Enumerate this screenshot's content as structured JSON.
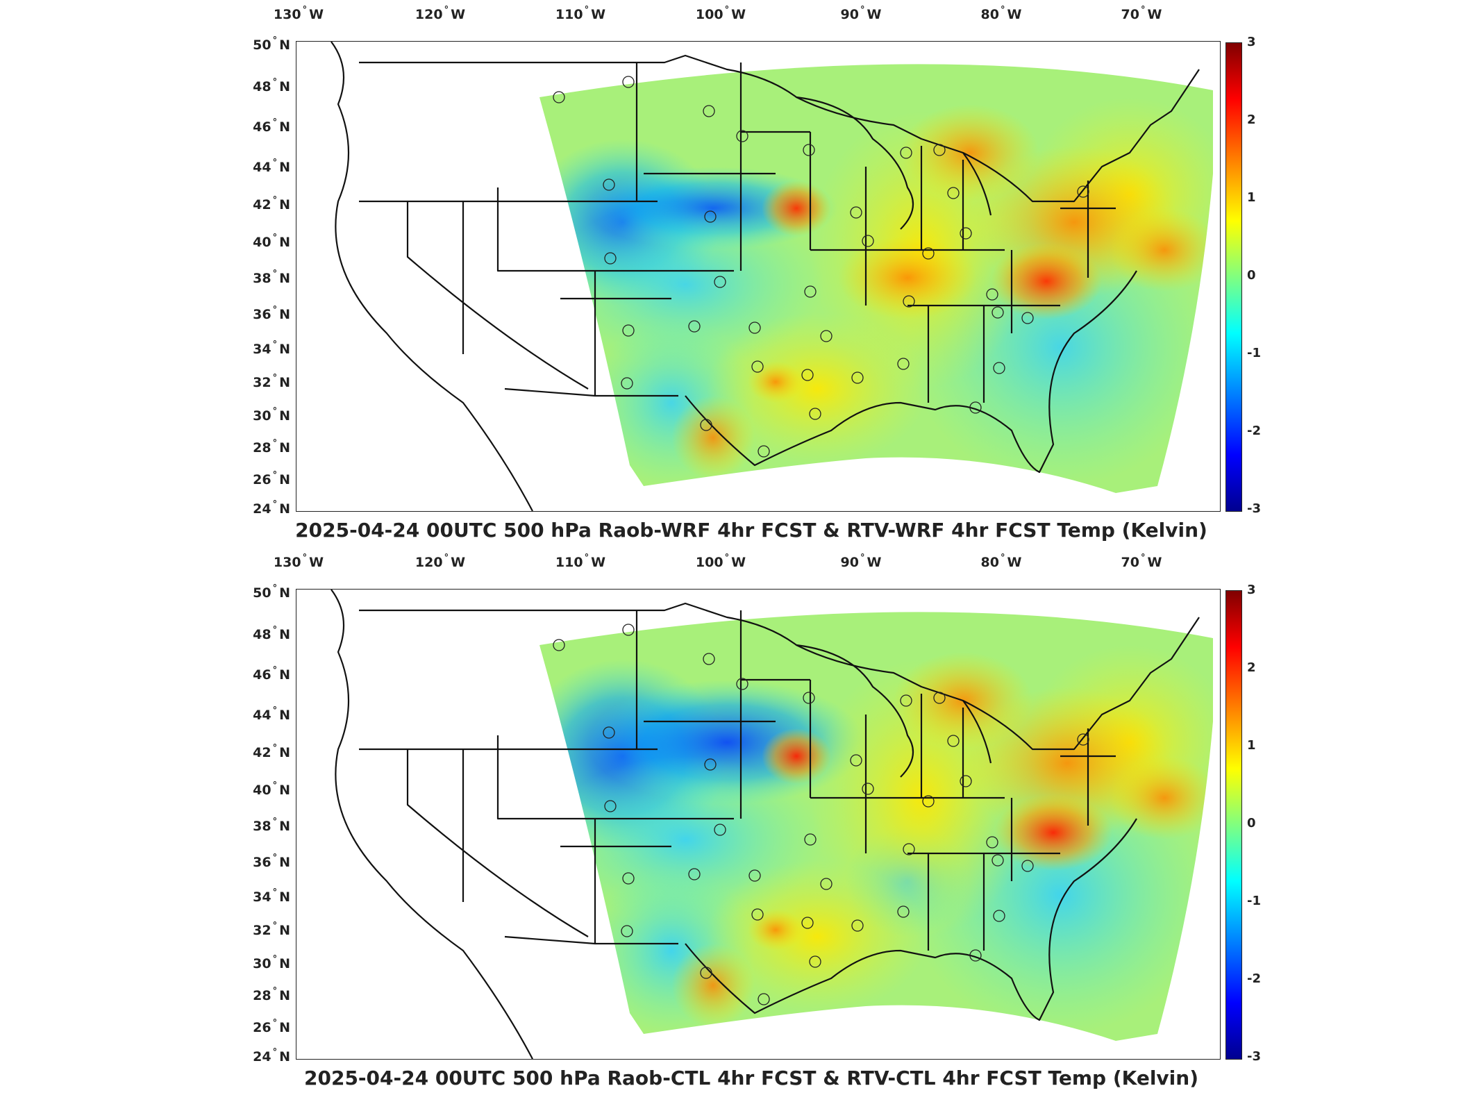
{
  "panels": [
    {
      "title": "2025-04-24 00UTC 500 hPa Raob-WRF 4hr FCST & RTV-WRF 4hr FCST Temp (Kelvin)"
    },
    {
      "title": "2025-04-24 00UTC 500 hPa Raob-CTL 4hr FCST & RTV-CTL 4hr FCST Temp (Kelvin)"
    }
  ],
  "lon_labels": [
    "130",
    "120",
    "110",
    "100",
    "90",
    "80",
    "70"
  ],
  "lon_suffix": "W",
  "lat_labels": [
    "50",
    "48",
    "46",
    "44",
    "42",
    "40",
    "38",
    "36",
    "34",
    "32",
    "30",
    "28",
    "26",
    "24"
  ],
  "lat_suffix": "N",
  "colorbar": {
    "ticks": [
      "3",
      "2",
      "1",
      "0",
      "-1",
      "-2",
      "-3"
    ],
    "colormap": [
      "#00008f",
      "#0000ff",
      "#0080ff",
      "#00ffff",
      "#80ff80",
      "#ffff00",
      "#ff8000",
      "#ff0000",
      "#800000"
    ],
    "min": -3,
    "max": 3
  },
  "colors": {
    "border": "#111111",
    "field_base": "#a8f07a"
  }
}
